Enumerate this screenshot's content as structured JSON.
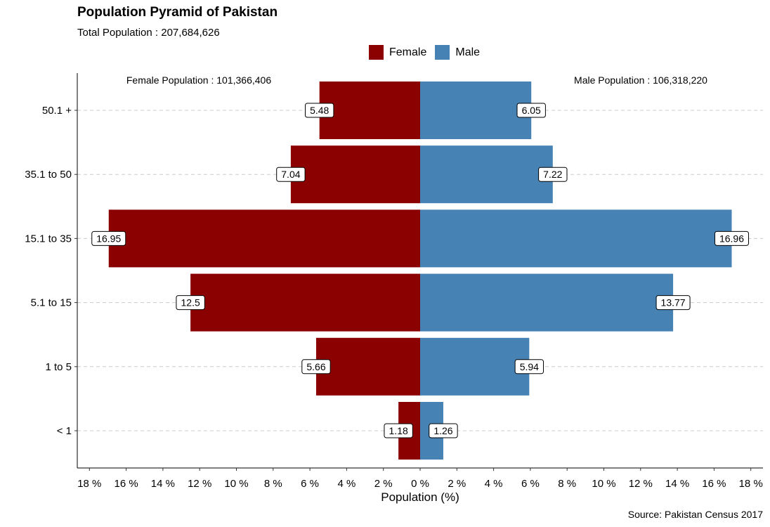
{
  "chart_data": {
    "type": "bar",
    "orientation": "horizontal-diverging",
    "title": "Population Pyramid of Pakistan",
    "subtitle": "Total Population : 207,684,626",
    "caption": "Source: Pakistan Census 2017",
    "xlabel": "Population (%)",
    "ylabel": "",
    "categories": [
      "< 1",
      "1 to 5",
      "5.1 to 15",
      "15.1 to 35",
      "35.1 to 50",
      "50.1 +"
    ],
    "series": [
      {
        "name": "Female",
        "color": "#8B0000",
        "side": "left",
        "values": [
          1.18,
          5.66,
          12.5,
          16.95,
          7.04,
          5.48
        ],
        "labels": [
          "1.18",
          "5.66",
          "12.5",
          "16.95",
          "7.04",
          "5.48"
        ]
      },
      {
        "name": "Male",
        "color": "#4682B4",
        "side": "right",
        "values": [
          1.26,
          5.94,
          13.77,
          16.96,
          7.22,
          6.05
        ],
        "labels": [
          "1.26",
          "5.94",
          "13.77",
          "16.96",
          "7.22",
          "6.05"
        ]
      }
    ],
    "xlim": [
      -18,
      18
    ],
    "x_ticks": [
      -18,
      -16,
      -14,
      -12,
      -10,
      -8,
      -6,
      -4,
      -2,
      0,
      2,
      4,
      6,
      8,
      10,
      12,
      14,
      16,
      18
    ],
    "x_tick_labels": [
      "18 %",
      "16 %",
      "14 %",
      "12 %",
      "10 %",
      "8 %",
      "6 %",
      "4 %",
      "2 %",
      "0 %",
      "2 %",
      "4 %",
      "6 %",
      "8 %",
      "10 %",
      "12 %",
      "14 %",
      "16 %",
      "18 %"
    ],
    "annotations": {
      "female_total": "Female Population : 101,366,406",
      "male_total": "Male Population : 106,318,220"
    },
    "grid": "horizontal-dashed",
    "legend_position": "top"
  }
}
